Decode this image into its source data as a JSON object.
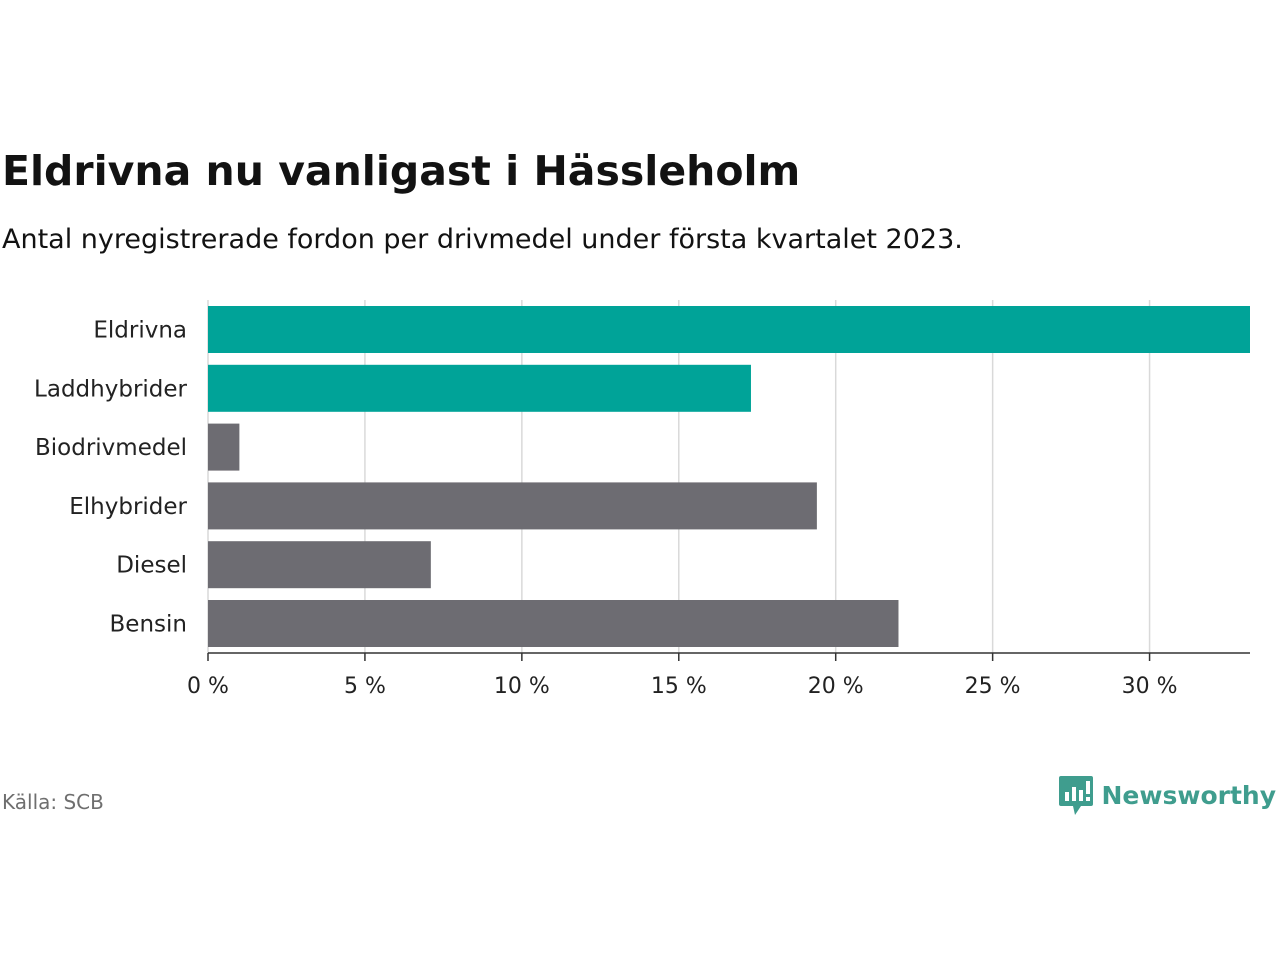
{
  "header": {
    "title": "Eldrivna nu vanligast i Hässleholm",
    "subtitle": "Antal nyregistrerade fordon per drivmedel under första kvartalet 2023."
  },
  "footer": {
    "source": "Källa: SCB",
    "brand": "Newsworthy",
    "brand_icon": "newsworthy-logo-icon"
  },
  "colors": {
    "highlight": "#00a398",
    "default": "#6d6c72",
    "grid": "#d9d9d9",
    "axis": "#333333",
    "brand": "#3f9d8e"
  },
  "chart_data": {
    "type": "bar",
    "orientation": "horizontal",
    "categories": [
      "Eldrivna",
      "Laddhybrider",
      "Biodrivmedel",
      "Elhybrider",
      "Diesel",
      "Bensin"
    ],
    "values": [
      33.2,
      17.3,
      1.0,
      19.4,
      7.1,
      22.0
    ],
    "highlighted": [
      true,
      true,
      false,
      false,
      false,
      false
    ],
    "xlim": [
      0,
      33.2
    ],
    "xticks": [
      0,
      5,
      10,
      15,
      20,
      25,
      30
    ],
    "xtick_labels": [
      "0 %",
      "5 %",
      "10 %",
      "15 %",
      "20 %",
      "25 %",
      "30 %"
    ],
    "grid": "vertical",
    "legend": "none"
  }
}
